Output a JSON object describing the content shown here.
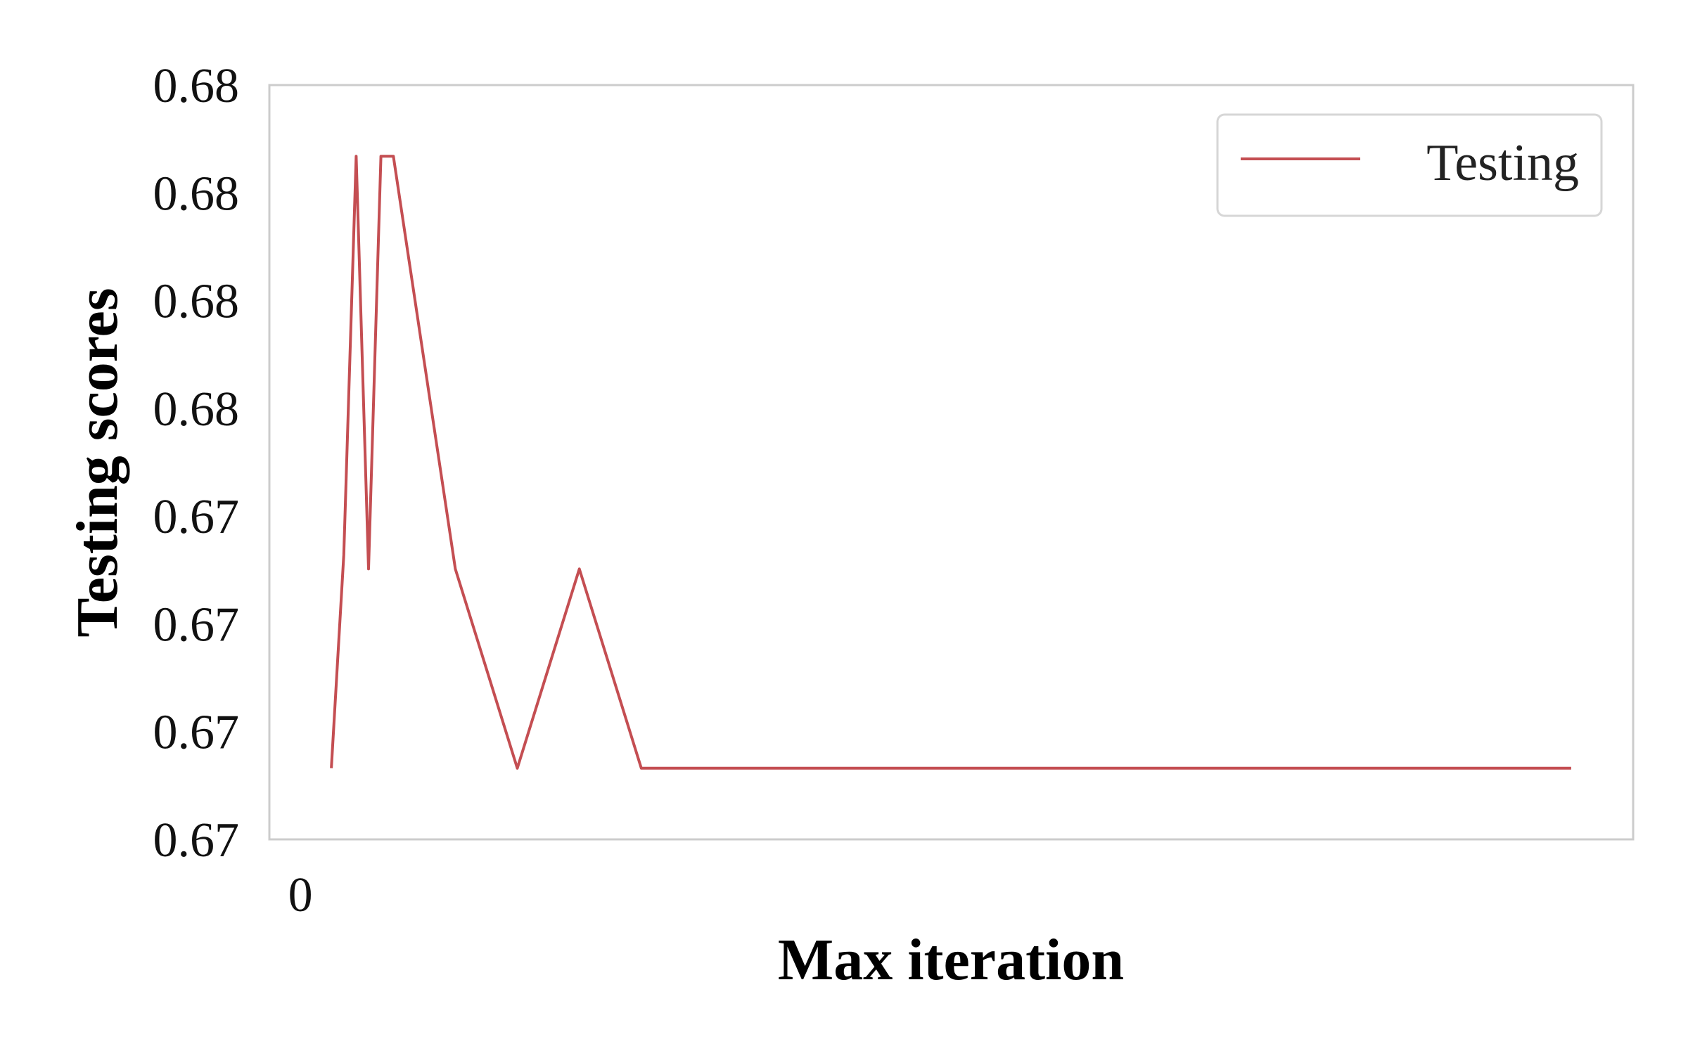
{
  "chart_data": {
    "type": "line",
    "title": "",
    "xlabel": "Max iteration",
    "ylabel": "Testing scores",
    "grid": false,
    "legend_position": "top-right",
    "x_tick_labels": [
      "0"
    ],
    "y_tick_labels": [
      "0.67",
      "0.67",
      "0.67",
      "0.67",
      "0.68",
      "0.68",
      "0.68",
      "0.68"
    ],
    "x": [
      0,
      1,
      2,
      3,
      4,
      5,
      10,
      15,
      20,
      25,
      30,
      40,
      50,
      60,
      70,
      80,
      90,
      100
    ],
    "xlim": [
      -5,
      105
    ],
    "ylim": [
      0.6735,
      0.6788
    ],
    "series": [
      {
        "name": "Testing",
        "color": "#c44e52",
        "values": [
          0.674,
          0.6755,
          0.6783,
          0.6754,
          0.6783,
          0.6783,
          0.6754,
          0.674,
          0.6754,
          0.674,
          0.674,
          0.674,
          0.674,
          0.674,
          0.674,
          0.674,
          0.674,
          0.674
        ]
      }
    ]
  }
}
